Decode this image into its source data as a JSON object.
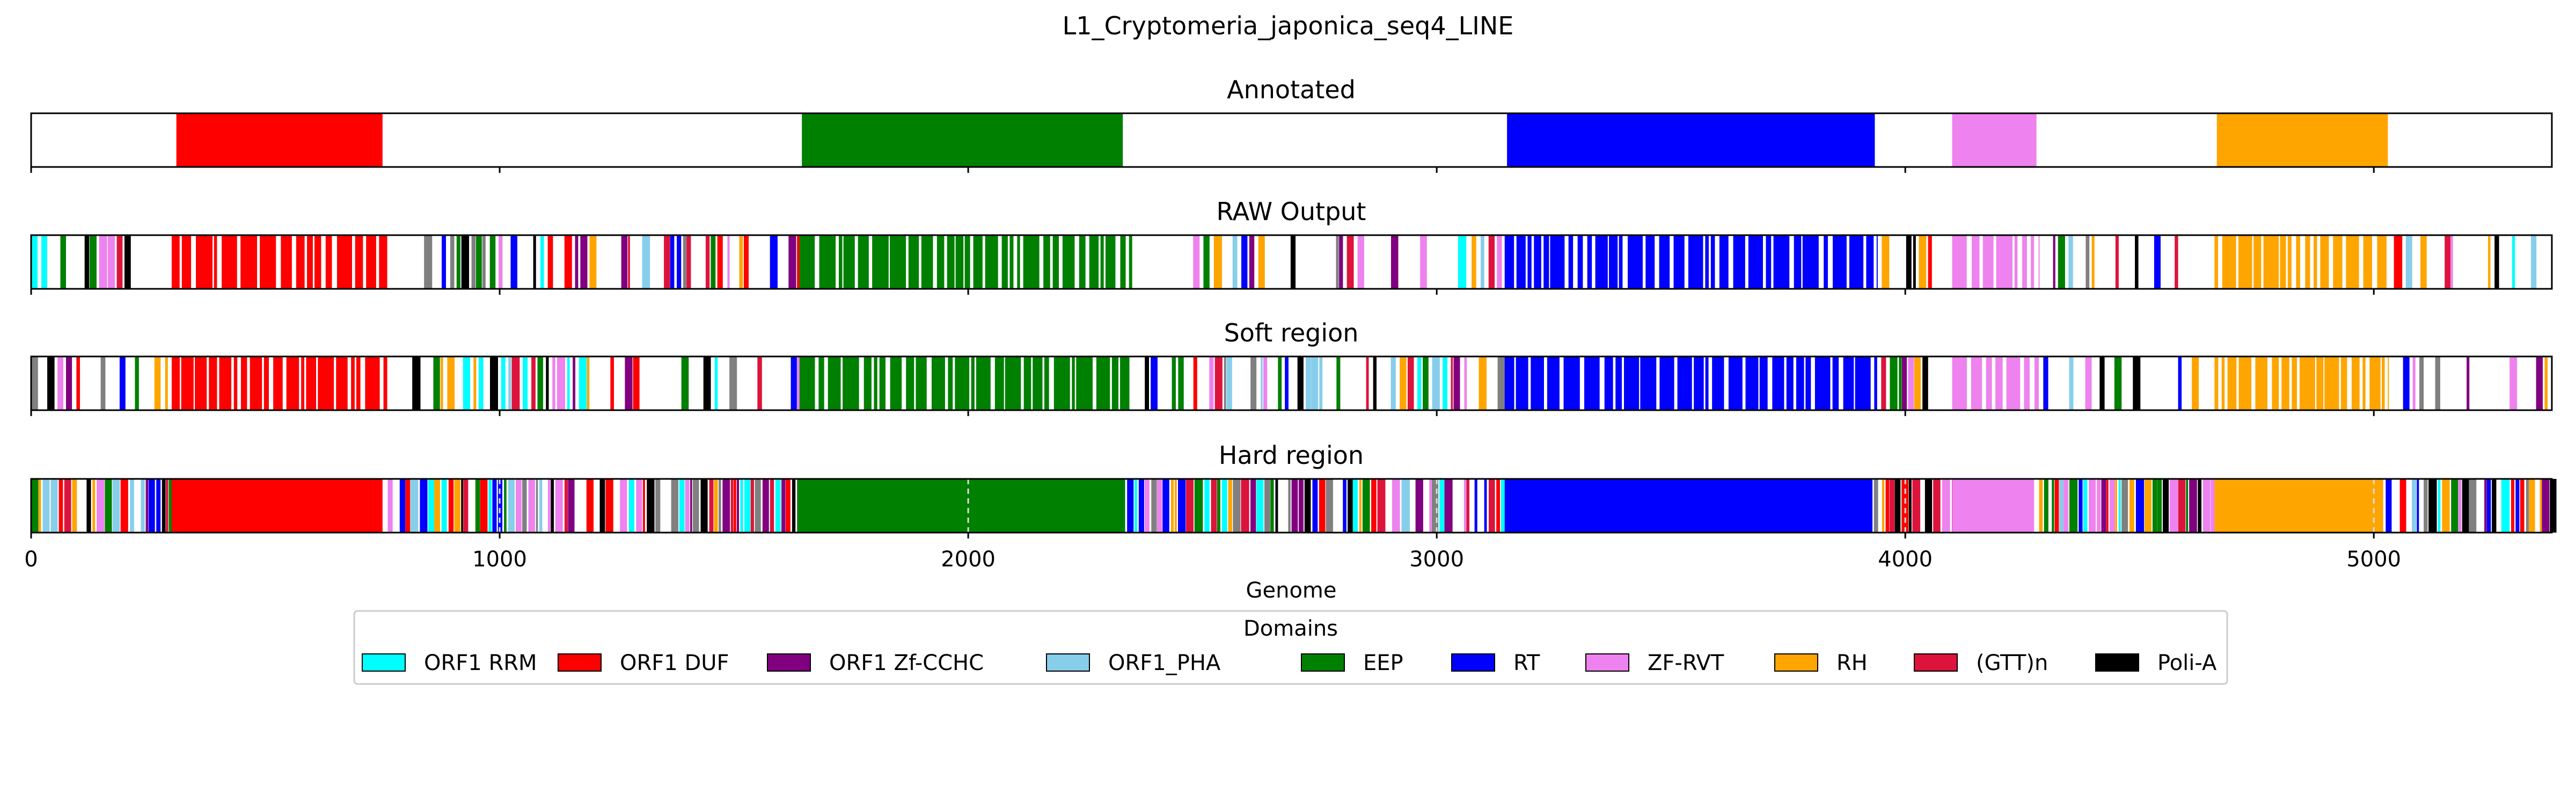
{
  "chart_data": {
    "type": "genome_tracks",
    "title": "L1_Cryptomeria_japonica_seq4_LINE",
    "xlabel": "Genome",
    "xlim": [
      0,
      5380
    ],
    "xticks": [
      0,
      1000,
      2000,
      3000,
      4000,
      5000
    ],
    "legend": {
      "title": "Domains",
      "placement": "bottom-center",
      "entries": [
        {
          "name": "ORF1 RRM",
          "color": "#00ffff"
        },
        {
          "name": "ORF1 DUF",
          "color": "#ff0000"
        },
        {
          "name": "ORF1 Zf-CCHC",
          "color": "#800080"
        },
        {
          "name": "ORF1_PHA",
          "color": "#87ceeb"
        },
        {
          "name": "EEP",
          "color": "#008000"
        },
        {
          "name": "RT",
          "color": "#0000ff"
        },
        {
          "name": "ZF-RVT",
          "color": "#ee82ee"
        },
        {
          "name": "RH",
          "color": "#ffa500"
        },
        {
          "name": "(GTT)n",
          "color": "#dc143c"
        },
        {
          "name": "Poli-A",
          "color": "#000000"
        }
      ]
    },
    "tracks": [
      {
        "title": "Annotated",
        "segments": [
          {
            "domain": "ORF1 DUF",
            "start": 310,
            "end": 750
          },
          {
            "domain": "EEP",
            "start": 1645,
            "end": 2330
          },
          {
            "domain": "RT",
            "start": 3150,
            "end": 3935
          },
          {
            "domain": "ZF-RVT",
            "start": 4100,
            "end": 4280
          },
          {
            "domain": "RH",
            "start": 4665,
            "end": 5030
          }
        ]
      },
      {
        "title": "RAW Output",
        "segments": [
          {
            "domain": "ORF1 DUF",
            "start": 300,
            "end": 760
          },
          {
            "domain": "EEP",
            "start": 1640,
            "end": 2350
          },
          {
            "domain": "RT",
            "start": 3145,
            "end": 3940
          },
          {
            "domain": "ZF-RVT",
            "start": 4100,
            "end": 4285
          },
          {
            "domain": "RH",
            "start": 4660,
            "end": 5030
          }
        ]
      },
      {
        "title": "Soft region",
        "segments": [
          {
            "domain": "ORF1 DUF",
            "start": 300,
            "end": 760
          },
          {
            "domain": "EEP",
            "start": 1640,
            "end": 2350
          },
          {
            "domain": "RT",
            "start": 3145,
            "end": 3940
          },
          {
            "domain": "ZF-RVT",
            "start": 4100,
            "end": 4285
          },
          {
            "domain": "RH",
            "start": 4660,
            "end": 5030
          }
        ]
      },
      {
        "title": "Hard region",
        "segments": [
          {
            "domain": "ORF1 DUF",
            "start": 300,
            "end": 750
          },
          {
            "domain": "EEP",
            "start": 1635,
            "end": 2335
          },
          {
            "domain": "RT",
            "start": 3145,
            "end": 3930
          },
          {
            "domain": "ZF-RVT",
            "start": 4100,
            "end": 4275
          },
          {
            "domain": "RH",
            "start": 4660,
            "end": 5020
          }
        ]
      }
    ]
  }
}
